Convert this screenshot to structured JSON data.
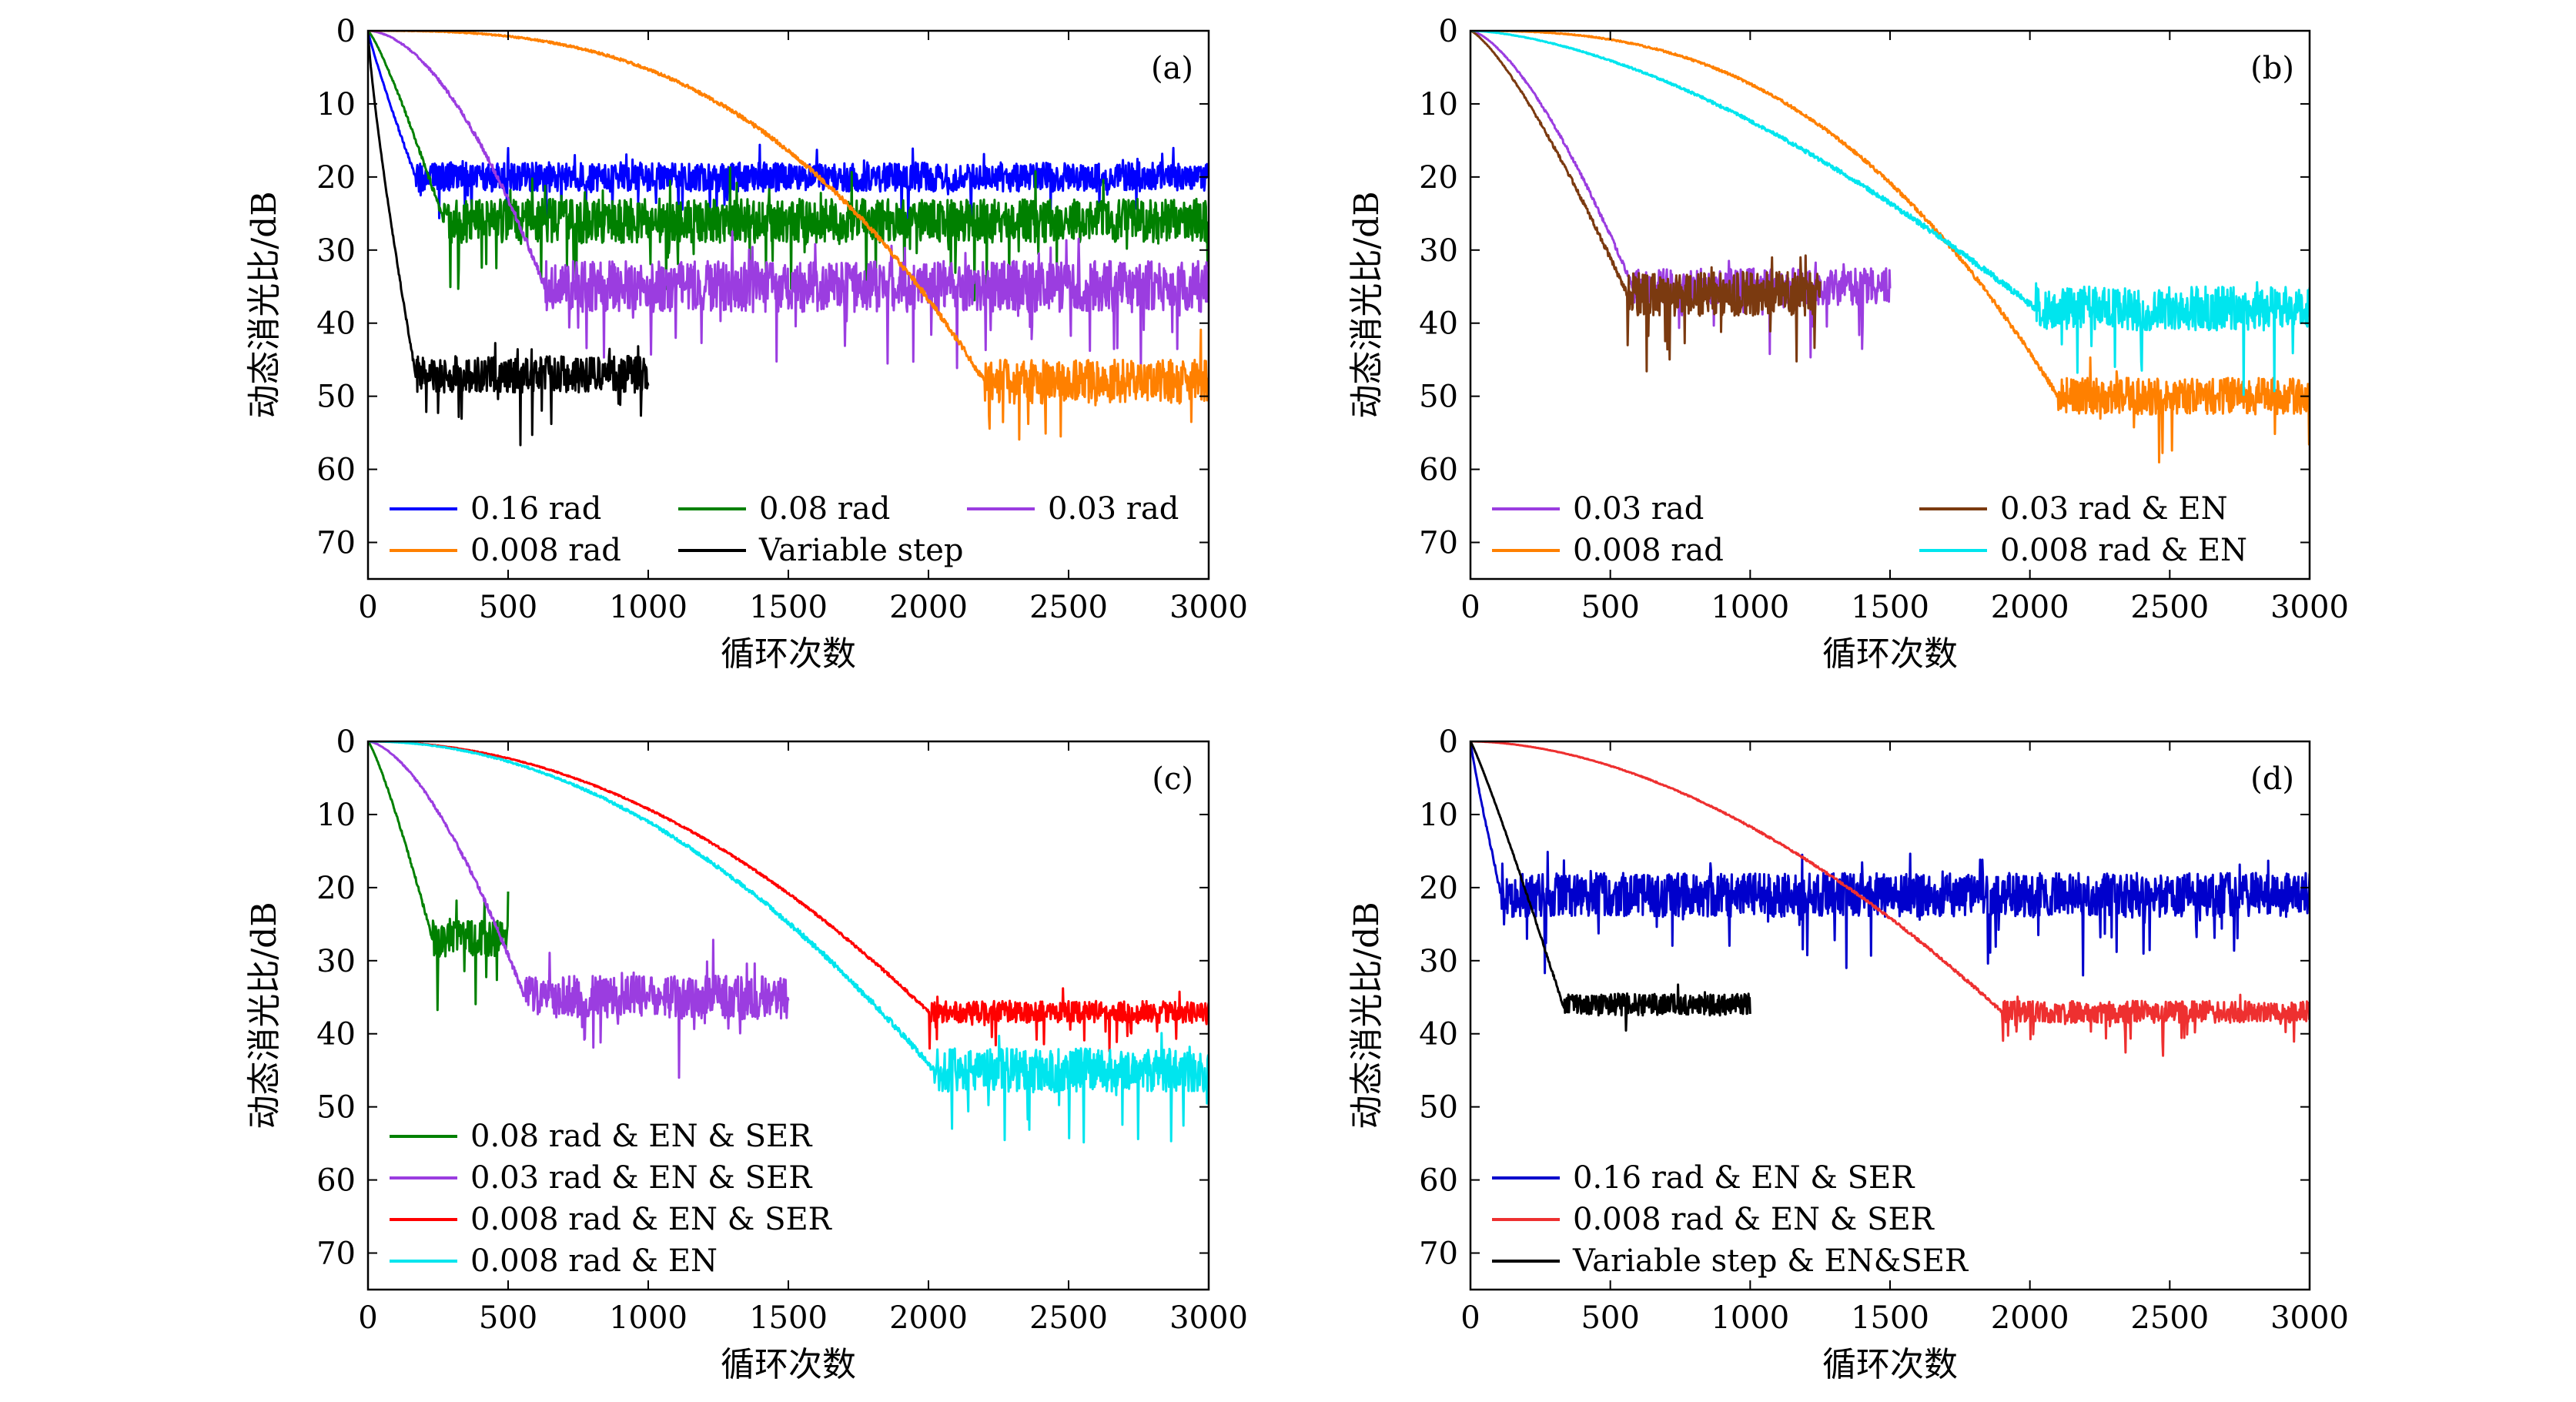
{
  "figure": {
    "background": "#ffffff"
  },
  "chart_data": [
    {
      "type": "line",
      "panel_label": "(a)",
      "xlabel": "循环次数",
      "ylabel": "动态消光比/dB",
      "xlim": [
        0,
        3000
      ],
      "ylim": [
        0,
        75
      ],
      "y_inverted": true,
      "xticks": [
        0,
        500,
        1000,
        1500,
        2000,
        2500,
        3000
      ],
      "yticks": [
        0,
        10,
        20,
        30,
        40,
        50,
        60,
        70
      ],
      "legend_columns": 3,
      "series": [
        {
          "name": "0.16 rad",
          "color": "#0000ff",
          "conv_iter": 170,
          "plateau": 20,
          "noise": 4,
          "end_iter": 3000,
          "shape": 0.9
        },
        {
          "name": "0.08 rad",
          "color": "#008000",
          "conv_iter": 270,
          "plateau": 26,
          "noise": 6,
          "end_iter": 3000,
          "shape": 1.2
        },
        {
          "name": "0.03 rad",
          "color": "#9b3de0",
          "conv_iter": 630,
          "plateau": 35,
          "noise": 7,
          "end_iter": 3000,
          "shape": 1.8
        },
        {
          "name": "0.008 rad",
          "color": "#ff8000",
          "conv_iter": 2200,
          "plateau": 48,
          "noise": 6,
          "end_iter": 3000,
          "shape": 2.8
        },
        {
          "name": "Variable step",
          "color": "#000000",
          "conv_iter": 170,
          "plateau": 47,
          "noise": 5,
          "end_iter": 1000,
          "shape": 0.8
        }
      ]
    },
    {
      "type": "line",
      "panel_label": "(b)",
      "xlabel": "循环次数",
      "ylabel": "动态消光比/dB",
      "xlim": [
        0,
        3000
      ],
      "ylim": [
        0,
        75
      ],
      "y_inverted": true,
      "xticks": [
        0,
        500,
        1000,
        1500,
        2000,
        2500,
        3000
      ],
      "yticks": [
        0,
        10,
        20,
        30,
        40,
        50,
        60,
        70
      ],
      "legend_columns": 2,
      "series": [
        {
          "name": "0.03 rad",
          "color": "#9b3de0",
          "conv_iter": 580,
          "plateau": 35,
          "noise": 5,
          "end_iter": 1500,
          "shape": 1.5
        },
        {
          "name": "0.03 rad & EN",
          "color": "#7b3a10",
          "conv_iter": 560,
          "plateau": 36,
          "noise": 6,
          "end_iter": 1250,
          "shape": 1.3
        },
        {
          "name": "0.008 rad",
          "color": "#ff8000",
          "conv_iter": 2100,
          "plateau": 50,
          "noise": 5,
          "end_iter": 3000,
          "shape": 2.6
        },
        {
          "name": "0.008 rad & EN",
          "color": "#00e5ee",
          "conv_iter": 2020,
          "plateau": 38,
          "noise": 6,
          "end_iter": 3000,
          "shape": 1.6
        }
      ]
    },
    {
      "type": "line",
      "panel_label": "(c)",
      "xlabel": "循环次数",
      "ylabel": "动态消光比/dB",
      "xlim": [
        0,
        3000
      ],
      "ylim": [
        0,
        75
      ],
      "y_inverted": true,
      "xticks": [
        0,
        500,
        1000,
        1500,
        2000,
        2500,
        3000
      ],
      "yticks": [
        0,
        10,
        20,
        30,
        40,
        50,
        60,
        70
      ],
      "legend_columns": 1,
      "series": [
        {
          "name": "0.08 rad & EN & SER",
          "color": "#008000",
          "conv_iter": 230,
          "plateau": 27,
          "noise": 5,
          "end_iter": 500,
          "shape": 1.2
        },
        {
          "name": "0.03 rad & EN & SER",
          "color": "#9b3de0",
          "conv_iter": 560,
          "plateau": 35,
          "noise": 6,
          "end_iter": 1500,
          "shape": 1.6
        },
        {
          "name": "0.008 rad & EN & SER",
          "color": "#ff0000",
          "conv_iter": 2000,
          "plateau": 37,
          "noise": 3,
          "end_iter": 3000,
          "shape": 2.0
        },
        {
          "name": "0.008 rad & EN",
          "color": "#00e5ee",
          "conv_iter": 2020,
          "plateau": 45,
          "noise": 6,
          "end_iter": 3000,
          "shape": 2.0
        }
      ]
    },
    {
      "type": "line",
      "panel_label": "(d)",
      "xlabel": "循环次数",
      "ylabel": "动态消光比/dB",
      "xlim": [
        0,
        3000
      ],
      "ylim": [
        0,
        75
      ],
      "y_inverted": true,
      "xticks": [
        0,
        500,
        1000,
        1500,
        2000,
        2500,
        3000
      ],
      "yticks": [
        0,
        10,
        20,
        30,
        40,
        50,
        60,
        70
      ],
      "legend_columns": 1,
      "series": [
        {
          "name": "0.16 rad & EN & SER",
          "color": "#0000cc",
          "conv_iter": 110,
          "plateau": 21,
          "noise": 6,
          "end_iter": 3000,
          "shape": 0.9
        },
        {
          "name": "0.008 rad & EN & SER",
          "color": "#ee3030",
          "conv_iter": 1900,
          "plateau": 37,
          "noise": 3,
          "end_iter": 3000,
          "shape": 1.8
        },
        {
          "name": "Variable step & EN&SER",
          "color": "#000000",
          "conv_iter": 330,
          "plateau": 36,
          "noise": 3,
          "end_iter": 1000,
          "shape": 1.1
        }
      ]
    }
  ]
}
